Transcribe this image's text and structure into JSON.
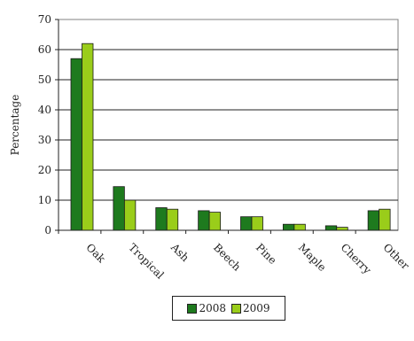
{
  "chart_data": {
    "type": "bar",
    "categories": [
      "Oak",
      "Tropical",
      "Ash",
      "Beech",
      "Pine",
      "Maple",
      "Cherry",
      "Other"
    ],
    "series": [
      {
        "name": "2008",
        "color": "#1e7a1e",
        "values": [
          57,
          14.5,
          7.5,
          6.5,
          4.5,
          2,
          1.5,
          6.5
        ]
      },
      {
        "name": "2009",
        "color": "#9acd1a",
        "values": [
          62,
          10,
          7,
          6,
          4.5,
          2,
          1,
          7
        ]
      }
    ],
    "ylabel": "Percentage",
    "ylim": [
      0,
      70
    ],
    "yticks": [
      "0",
      "10",
      "20",
      "30",
      "40",
      "50",
      "60",
      "70"
    ],
    "grid": true,
    "legend_placement": "bottom"
  }
}
